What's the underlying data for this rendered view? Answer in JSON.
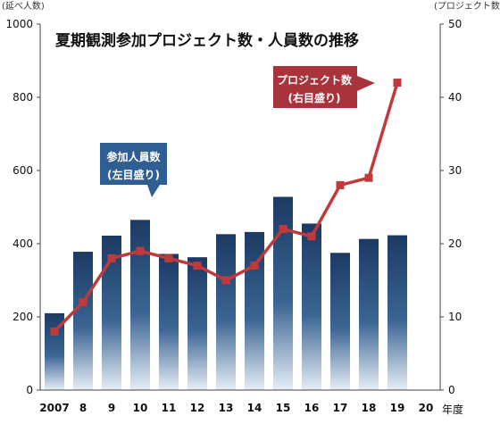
{
  "chart_data": {
    "type": "bar+line",
    "title": "夏期観測参加プロジェクト数・人員数の推移",
    "left_axis": {
      "label": "(延べ人数)",
      "ylim": [
        0,
        1000
      ],
      "ticks": [
        0,
        200,
        400,
        600,
        800,
        1000
      ]
    },
    "right_axis": {
      "label": "(プロジェクト数)",
      "ylim": [
        0,
        50
      ],
      "ticks": [
        0,
        10,
        20,
        30,
        40,
        50
      ]
    },
    "xlabel": "年度",
    "categories": [
      "2007",
      "8",
      "9",
      "10",
      "11",
      "12",
      "13",
      "14",
      "15",
      "16",
      "17",
      "18",
      "19",
      "20"
    ],
    "series": [
      {
        "type": "bar",
        "axis": "left",
        "color": "#2a4f7d",
        "values": [
          210,
          378,
          422,
          465,
          372,
          363,
          426,
          432,
          528,
          455,
          375,
          413,
          423,
          null
        ]
      },
      {
        "type": "line",
        "axis": "right",
        "color": "#c0393b",
        "values": [
          8,
          12,
          18,
          19,
          18,
          17,
          15,
          17,
          22,
          21,
          28,
          29,
          42,
          null
        ]
      }
    ],
    "annotations": [
      {
        "text_lines": [
          "参加人員数",
          "(左目盛り)"
        ],
        "color": "#2f5f92",
        "points_to": "bars"
      },
      {
        "text_lines": [
          "プロジェクト数",
          "(右目盛り)"
        ],
        "color": "#a8333a",
        "points_to": "line"
      }
    ],
    "grid": false
  }
}
